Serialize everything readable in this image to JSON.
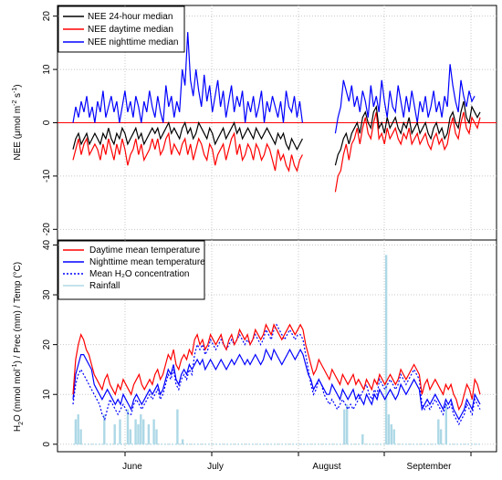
{
  "chart_data": [
    {
      "type": "line",
      "ylabel_main": "NEE (μmol m",
      "ylabel_sup1": "-2",
      "ylabel_mid": " s",
      "ylabel_sup2": "-1",
      "ylabel_end": ")",
      "ylim": [
        -22,
        22
      ],
      "yticks": [
        -20,
        -10,
        0,
        10,
        20
      ],
      "reference_line": {
        "y": 0,
        "color": "#ff0000"
      },
      "grid": true,
      "legend_position": "top-left",
      "x_start_day": 0,
      "series": [
        {
          "name": "NEE 24-hour median",
          "color": "#000000",
          "values": [
            -5,
            -3,
            -2,
            -4,
            -3,
            -2,
            -4,
            -3,
            -2,
            -3,
            -4,
            -2,
            -3,
            -1,
            -3,
            -4,
            -2,
            -3,
            -1,
            -2,
            -4,
            -3,
            -2,
            -1,
            -3,
            -2,
            -4,
            -3,
            -2,
            -1,
            -2,
            -1,
            -3,
            -2,
            -1,
            0,
            -2,
            -1,
            -2,
            -3,
            -1,
            0,
            -2,
            -1,
            -3,
            -2,
            0,
            -1,
            -2,
            -3,
            -1,
            -2,
            -4,
            -3,
            -2,
            -1,
            -3,
            -2,
            -1,
            0,
            -2,
            -1,
            -3,
            -2,
            -1,
            -2,
            -3,
            -1,
            -2,
            -3,
            -2,
            -1,
            -2,
            -3,
            -4,
            -2,
            -3,
            -2,
            -4,
            -5,
            -3,
            -4,
            -5,
            -4,
            -3,
            null,
            null,
            null,
            null,
            null,
            null,
            null,
            null,
            null,
            null,
            null,
            -8,
            -6,
            -5,
            -3,
            -2,
            -4,
            -2,
            -1,
            0,
            -2,
            1,
            2,
            0,
            -1,
            2,
            3,
            -1,
            0,
            -2,
            1,
            -1,
            0,
            1,
            -1,
            -2,
            0,
            -1,
            1,
            -2,
            -1,
            0,
            -2,
            -1,
            0,
            -2,
            -3,
            -1,
            0,
            -2,
            -1,
            -3,
            -2,
            1,
            2,
            0,
            -1,
            2,
            4,
            1,
            0,
            3,
            2,
            1,
            2
          ]
        },
        {
          "name": "NEE daytime median",
          "color": "#ff0000",
          "values": [
            -7,
            -5,
            -3,
            -6,
            -4,
            -3,
            -6,
            -5,
            -4,
            -5,
            -7,
            -4,
            -6,
            -3,
            -5,
            -7,
            -4,
            -6,
            -3,
            -5,
            -8,
            -6,
            -5,
            -3,
            -6,
            -4,
            -7,
            -6,
            -5,
            -3,
            -5,
            -3,
            -6,
            -5,
            -3,
            -2,
            -6,
            -4,
            -5,
            -6,
            -4,
            -3,
            -6,
            -4,
            -7,
            -5,
            -3,
            -4,
            -6,
            -7,
            -4,
            -5,
            -8,
            -6,
            -5,
            -4,
            -7,
            -5,
            -3,
            -2,
            -6,
            -4,
            -7,
            -6,
            -4,
            -5,
            -7,
            -4,
            -5,
            -7,
            -6,
            -4,
            -5,
            -7,
            -9,
            -5,
            -7,
            -6,
            -8,
            -9,
            -6,
            -8,
            -9,
            -7,
            -6,
            null,
            null,
            null,
            null,
            null,
            null,
            null,
            null,
            null,
            null,
            null,
            -13,
            -10,
            -9,
            -6,
            -4,
            -7,
            -4,
            -3,
            -1,
            -4,
            -1,
            1,
            -2,
            -3,
            0,
            2,
            -3,
            -2,
            -4,
            -1,
            -3,
            -2,
            -1,
            -3,
            -4,
            -2,
            -3,
            -1,
            -4,
            -3,
            -2,
            -4,
            -3,
            -2,
            -4,
            -5,
            -3,
            -2,
            -4,
            -3,
            -5,
            -4,
            -1,
            1,
            -2,
            -3,
            0,
            2,
            -1,
            -2,
            1,
            0,
            -1,
            1
          ]
        },
        {
          "name": "NEE nighttime median",
          "color": "#0000ff",
          "values": [
            0,
            3,
            1,
            4,
            2,
            5,
            1,
            3,
            0,
            4,
            2,
            6,
            1,
            3,
            5,
            2,
            4,
            0,
            3,
            6,
            2,
            4,
            1,
            5,
            3,
            0,
            4,
            2,
            6,
            3,
            1,
            5,
            2,
            0,
            7,
            3,
            5,
            1,
            4,
            2,
            10,
            7,
            17,
            8,
            5,
            10,
            6,
            3,
            9,
            4,
            7,
            2,
            5,
            8,
            3,
            6,
            1,
            4,
            7,
            2,
            5,
            3,
            6,
            0,
            4,
            2,
            5,
            1,
            3,
            6,
            0,
            4,
            2,
            5,
            3,
            1,
            4,
            0,
            6,
            3,
            2,
            5,
            1,
            4,
            0,
            null,
            null,
            null,
            null,
            null,
            null,
            null,
            null,
            null,
            null,
            null,
            -2,
            1,
            3,
            8,
            6,
            4,
            7,
            3,
            5,
            2,
            6,
            4,
            1,
            7,
            3,
            5,
            2,
            8,
            4,
            1,
            6,
            3,
            2,
            7,
            4,
            1,
            5,
            2,
            6,
            3,
            0,
            4,
            2,
            5,
            1,
            3,
            6,
            2,
            4,
            1,
            5,
            3,
            11,
            7,
            4,
            2,
            8,
            5,
            3,
            6,
            4,
            5
          ]
        }
      ]
    },
    {
      "type": "line",
      "ylabel_pre": "H",
      "ylabel_sub1": "2",
      "ylabel_o": "O (mmol mol",
      "ylabel_sup": "-1",
      "ylabel_post": ") / Prec (mm) / Temp (°C)",
      "ylim": [
        -1.5,
        41
      ],
      "yticks": [
        0,
        10,
        20,
        30,
        40
      ],
      "grid": true,
      "legend_position": "top-left",
      "x_ticks_labels": [
        "June",
        "July",
        "August",
        "September"
      ],
      "series": [
        {
          "name": "Daytime mean temperature",
          "color": "#ff0000",
          "style": "solid",
          "values": [
            10,
            17,
            20,
            22,
            21,
            19,
            18,
            16,
            14,
            13,
            12,
            11,
            13,
            14,
            12,
            11,
            10,
            12,
            11,
            13,
            12,
            11,
            10,
            12,
            13,
            14,
            12,
            11,
            12,
            13,
            12,
            14,
            15,
            13,
            14,
            16,
            18,
            17,
            19,
            16,
            15,
            17,
            18,
            17,
            19,
            18,
            21,
            22,
            20,
            21,
            19,
            20,
            22,
            21,
            20,
            21,
            22,
            20,
            19,
            21,
            22,
            20,
            21,
            23,
            22,
            21,
            22,
            20,
            21,
            23,
            22,
            21,
            22,
            24,
            23,
            22,
            24,
            23,
            22,
            21,
            22,
            23,
            24,
            23,
            22,
            23,
            24,
            23,
            20,
            18,
            16,
            14,
            15,
            17,
            16,
            15,
            14,
            13,
            15,
            14,
            13,
            12,
            14,
            13,
            12,
            13,
            14,
            12,
            13,
            12,
            11,
            13,
            12,
            11,
            13,
            12,
            14,
            13,
            12,
            13,
            14,
            13,
            12,
            13,
            15,
            14,
            13,
            14,
            15,
            16,
            15,
            14,
            10,
            12,
            13,
            11,
            12,
            13,
            12,
            11,
            10,
            12,
            11,
            12,
            10,
            9,
            7,
            8,
            10,
            12,
            11,
            9,
            13,
            12,
            10
          ]
        },
        {
          "name": "Nighttime mean temperature",
          "color": "#0000ff",
          "style": "solid",
          "values": [
            9,
            14,
            16,
            18,
            18,
            17,
            16,
            15,
            12,
            11,
            10,
            9,
            10,
            11,
            10,
            9,
            8,
            9,
            8,
            10,
            9,
            8,
            7,
            9,
            10,
            9,
            8,
            9,
            10,
            11,
            10,
            11,
            12,
            10,
            11,
            13,
            15,
            14,
            16,
            13,
            12,
            14,
            15,
            14,
            16,
            15,
            16,
            17,
            16,
            17,
            15,
            16,
            17,
            16,
            15,
            16,
            17,
            16,
            15,
            16,
            17,
            16,
            17,
            18,
            17,
            16,
            17,
            16,
            17,
            18,
            17,
            16,
            17,
            19,
            18,
            17,
            19,
            18,
            17,
            16,
            17,
            18,
            19,
            18,
            17,
            18,
            19,
            18,
            16,
            14,
            13,
            11,
            12,
            13,
            12,
            11,
            10,
            10,
            12,
            11,
            10,
            9,
            11,
            10,
            9,
            10,
            11,
            9,
            10,
            9,
            8,
            10,
            9,
            8,
            10,
            9,
            11,
            10,
            9,
            10,
            11,
            10,
            9,
            10,
            12,
            11,
            10,
            11,
            12,
            13,
            12,
            11,
            7,
            8,
            9,
            8,
            9,
            10,
            9,
            8,
            7,
            9,
            8,
            9,
            7,
            6,
            5,
            6,
            7,
            9,
            8,
            7,
            10,
            9,
            8
          ]
        },
        {
          "name": "Mean H₂O concentration",
          "color": "#0000ff",
          "style": "dotted",
          "values": [
            8,
            12,
            14,
            15,
            14,
            13,
            12,
            11,
            10,
            9,
            8,
            6,
            5,
            7,
            9,
            8,
            7,
            6,
            7,
            8,
            7,
            6,
            6,
            8,
            9,
            8,
            7,
            8,
            9,
            10,
            9,
            10,
            11,
            9,
            10,
            12,
            14,
            13,
            15,
            12,
            11,
            13,
            14,
            13,
            15,
            14,
            18,
            20,
            19,
            20,
            18,
            19,
            21,
            20,
            19,
            20,
            21,
            20,
            19,
            20,
            21,
            20,
            21,
            22,
            21,
            20,
            21,
            20,
            21,
            22,
            21,
            20,
            21,
            23,
            22,
            21,
            23,
            24,
            23,
            22,
            21,
            22,
            23,
            22,
            21,
            22,
            22,
            21,
            18,
            15,
            12,
            10,
            11,
            13,
            12,
            10,
            9,
            8,
            9,
            8,
            7,
            8,
            9,
            8,
            7,
            8,
            7,
            8,
            9,
            10,
            11,
            12,
            10,
            9,
            11,
            10,
            13,
            12,
            11,
            12,
            13,
            12,
            11,
            12,
            14,
            13,
            12,
            13,
            14,
            15,
            14,
            13,
            8,
            7,
            8,
            7,
            8,
            9,
            8,
            7,
            6,
            8,
            7,
            8,
            6,
            5,
            4,
            5,
            6,
            8,
            7,
            6,
            9,
            8,
            7
          ]
        },
        {
          "name": "Rainfall",
          "color": "#add8e6",
          "style": "bar",
          "values": [
            0,
            5,
            6,
            3,
            0,
            0,
            0,
            0,
            0,
            0,
            0,
            0,
            6,
            0,
            0,
            0,
            4,
            0,
            5,
            0,
            0,
            7,
            3,
            0,
            5,
            4,
            6,
            5,
            0,
            4,
            0,
            5,
            3,
            0,
            0,
            0,
            0,
            0,
            0,
            0,
            7,
            0,
            1,
            0,
            0,
            0,
            0,
            0,
            0,
            0,
            0,
            0,
            0,
            0,
            0,
            0,
            0,
            0,
            0,
            0,
            0,
            0,
            0,
            0,
            0,
            0,
            0,
            0,
            0,
            0,
            0,
            0,
            0,
            0,
            0,
            0,
            0,
            0,
            0,
            0,
            0,
            0,
            0,
            0,
            0,
            0,
            0,
            0,
            0,
            0,
            0,
            0,
            0,
            0,
            0,
            0,
            0,
            0,
            0,
            0,
            0,
            0,
            0,
            0,
            7,
            8,
            0,
            0,
            0,
            0,
            0,
            2,
            0,
            0,
            0,
            0,
            0,
            0,
            0,
            0,
            38,
            6,
            4,
            3,
            0,
            0,
            0,
            0,
            0,
            0,
            0,
            0,
            0,
            0,
            0,
            0,
            0,
            0,
            0,
            0,
            5,
            3,
            0,
            8,
            0,
            0,
            0,
            0,
            0,
            0,
            0,
            0,
            0,
            0,
            0,
            0,
            0
          ]
        }
      ]
    }
  ]
}
